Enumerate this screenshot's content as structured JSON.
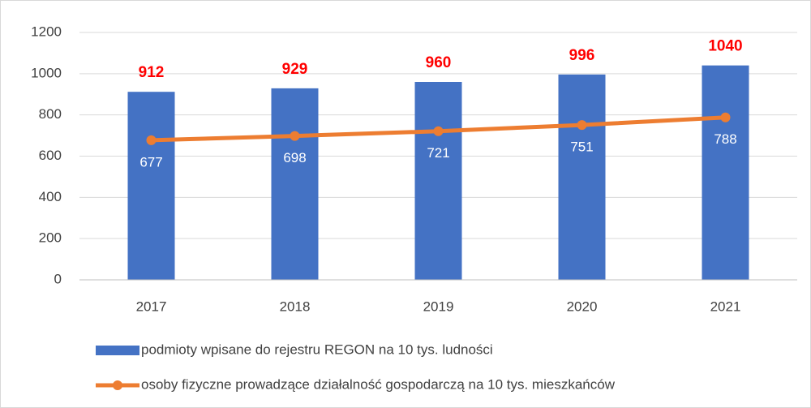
{
  "chart_data": {
    "type": "bar",
    "categories": [
      "2017",
      "2018",
      "2019",
      "2020",
      "2021"
    ],
    "series": [
      {
        "name": "podmioty wpisane do rejestru REGON na 10 tys. ludności",
        "type": "bar",
        "color": "#4472c4",
        "values": [
          912,
          929,
          960,
          996,
          1040
        ]
      },
      {
        "name": "osoby fizyczne prowadzące działalność gospodarczą na 10 tys. mieszkańców",
        "type": "line",
        "color": "#ed7d31",
        "values": [
          677,
          698,
          721,
          751,
          788
        ]
      }
    ],
    "ylim": [
      0,
      1200
    ],
    "yticks": [
      0,
      200,
      400,
      600,
      800,
      1000,
      1200
    ],
    "grid": true,
    "legend": "bottom"
  }
}
